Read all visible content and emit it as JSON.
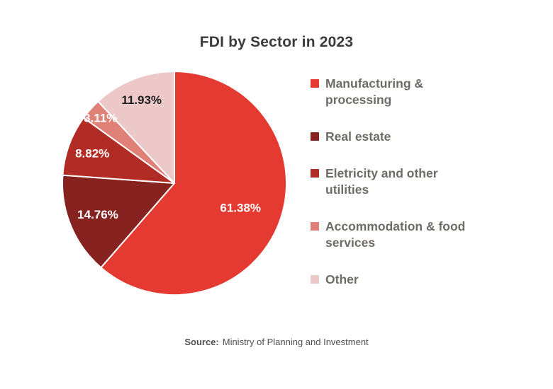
{
  "title": "FDI by Sector in 2023",
  "source": {
    "label": "Source:",
    "text": "Ministry of Planning and Investment"
  },
  "chart_data": {
    "type": "pie",
    "title": "FDI by Sector in 2023",
    "start_angle_deg": 0,
    "direction": "clockwise",
    "legend_position": "right",
    "background": "#ffffff",
    "slices": [
      {
        "label": "Manufacturing & processing",
        "legend_lines": [
          "Manufacturing &",
          "processing"
        ],
        "value": 61.38,
        "display": "61.38%",
        "color": "#e43a31",
        "label_color": "#ffffff",
        "label_r": 0.63
      },
      {
        "label": "Real estate",
        "legend_lines": [
          "Real estate"
        ],
        "value": 14.76,
        "display": "14.76%",
        "color": "#862321",
        "label_color": "#ffffff",
        "label_r": 0.74
      },
      {
        "label": "Eletricity and other utilities",
        "legend_lines": [
          "Eletricity and other",
          "utilities"
        ],
        "value": 8.82,
        "display": "8.82%",
        "color": "#b12c24",
        "label_color": "#ffffff",
        "label_r": 0.78
      },
      {
        "label": "Accommodation & food services",
        "legend_lines": [
          "Accommodation & food",
          "services"
        ],
        "value": 3.11,
        "display": "3.11%",
        "color": "#e08178",
        "label_color": "#ffffff",
        "label_r": 0.88
      },
      {
        "label": "Other",
        "legend_lines": [
          "Other"
        ],
        "value": 11.93,
        "display": "11.93%",
        "color": "#edc8c8",
        "label_color": "#1e1e1e",
        "label_r": 0.8
      }
    ]
  }
}
